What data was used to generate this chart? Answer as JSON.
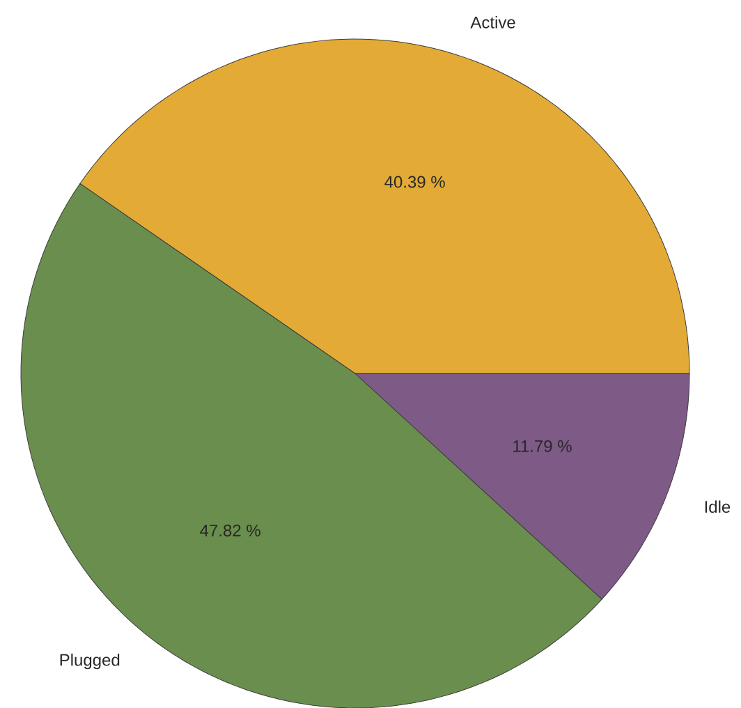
{
  "chart_data": {
    "type": "pie",
    "categories": [
      "Active",
      "Plugged",
      "Idle"
    ],
    "values": [
      40.39,
      47.82,
      11.79
    ],
    "colors": [
      "#e3ab35",
      "#6a8e4e",
      "#7e5a87"
    ],
    "value_labels": [
      "40.39 %",
      "47.82 %",
      "11.79 %"
    ]
  }
}
